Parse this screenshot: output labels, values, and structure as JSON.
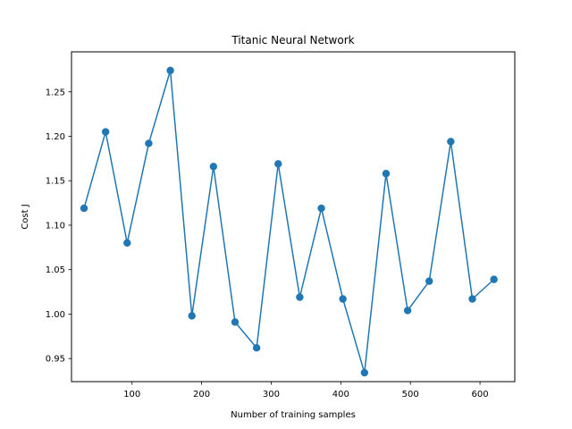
{
  "chart_data": {
    "type": "line",
    "title": "Titanic Neural Network",
    "xlabel": "Number of training samples",
    "ylabel": "Cost J",
    "xlim": [
      13,
      650
    ],
    "ylim": [
      0.924,
      1.295
    ],
    "xticks": [
      100,
      200,
      300,
      400,
      500,
      600
    ],
    "xtick_labels": [
      "100",
      "200",
      "300",
      "400",
      "500",
      "600"
    ],
    "yticks": [
      0.95,
      1.0,
      1.05,
      1.1,
      1.15,
      1.2,
      1.25
    ],
    "ytick_labels": [
      "0.95",
      "1.00",
      "1.05",
      "1.10",
      "1.15",
      "1.20",
      "1.25"
    ],
    "grid": false,
    "series": [
      {
        "color": "#1f77b4",
        "marker": "circle",
        "x": [
          31,
          62,
          93,
          124,
          155,
          186,
          217,
          248,
          279,
          310,
          341,
          372,
          403,
          434,
          465,
          496,
          527,
          558,
          589,
          620
        ],
        "y": [
          1.119,
          1.205,
          1.08,
          1.192,
          1.274,
          0.998,
          1.166,
          0.991,
          0.962,
          1.169,
          1.019,
          1.119,
          1.017,
          0.934,
          1.158,
          1.004,
          1.037,
          1.194,
          1.017,
          1.039
        ]
      }
    ]
  }
}
